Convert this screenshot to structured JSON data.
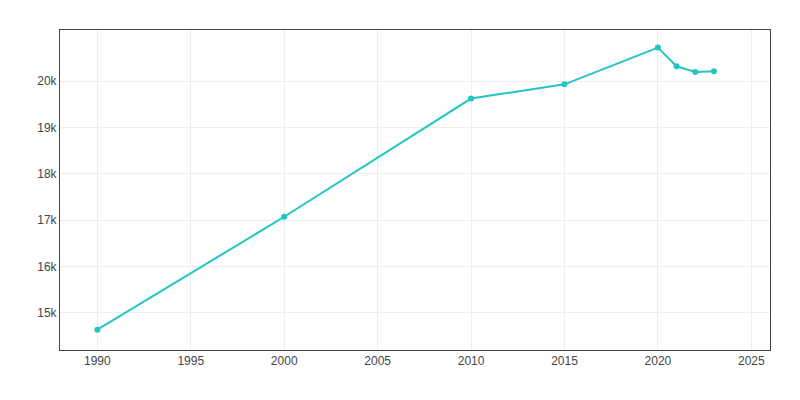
{
  "chart_data": {
    "type": "line",
    "x": [
      1990,
      2000,
      2010,
      2015,
      2020,
      2021,
      2022,
      2023
    ],
    "values": [
      14638,
      17073,
      19622,
      19929,
      20720,
      20318,
      20196,
      20212
    ],
    "color": "#22c4c4",
    "marker": "circle",
    "xlim": [
      1988,
      2026
    ],
    "xticks": [
      1990,
      1995,
      2000,
      2005,
      2010,
      2015,
      2020,
      2025
    ],
    "ylim": [
      14200,
      21100
    ],
    "yticks": [
      {
        "value": 15000,
        "label": "15k"
      },
      {
        "value": 16000,
        "label": "16k"
      },
      {
        "value": 17000,
        "label": "17k"
      },
      {
        "value": 18000,
        "label": "18k"
      },
      {
        "value": 19000,
        "label": "19k"
      },
      {
        "value": 20000,
        "label": "20k"
      }
    ],
    "grid": true
  }
}
